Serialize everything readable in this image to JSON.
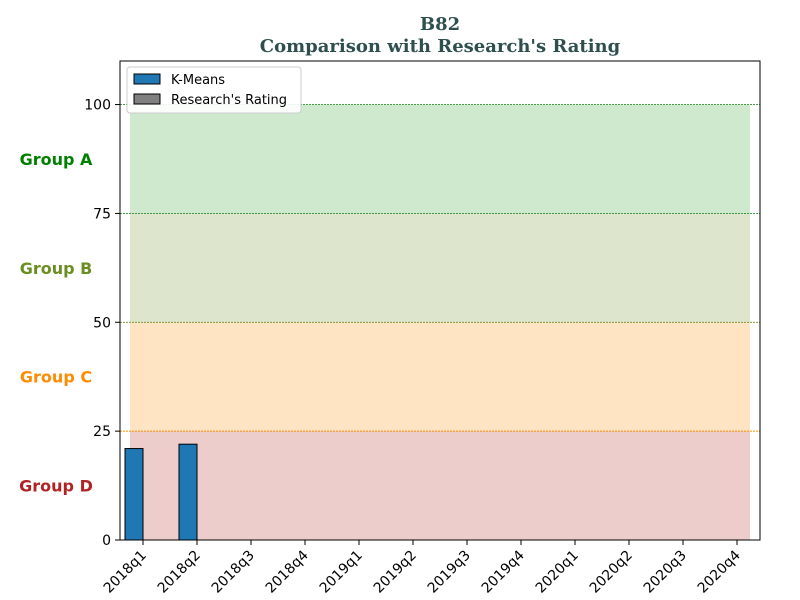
{
  "chart_data": {
    "type": "bar",
    "title": "B82",
    "subtitle": "Comparison with Research's Rating",
    "title_color": "#2f4f4f",
    "categories": [
      "2018q1",
      "2018q2",
      "2018q3",
      "2018q4",
      "2019q1",
      "2019q2",
      "2019q3",
      "2019q4",
      "2020q1",
      "2020q2",
      "2020q3",
      "2020q4"
    ],
    "series": [
      {
        "name": "K-Means",
        "color": "#1f77b4",
        "values": [
          21,
          22,
          null,
          null,
          null,
          null,
          null,
          null,
          null,
          null,
          null,
          null
        ]
      },
      {
        "name": "Research's Rating",
        "color": "#808080",
        "values": [
          null,
          null,
          null,
          null,
          null,
          null,
          null,
          null,
          null,
          null,
          null,
          null
        ]
      }
    ],
    "ylim": [
      0,
      110
    ],
    "yticks": [
      0,
      25,
      50,
      75,
      100
    ],
    "xlabel": "",
    "ylabel": "",
    "legend": "top-left",
    "bands": [
      {
        "from": 75,
        "to": 100,
        "color": "#2ca02c",
        "line_color": "#2e8b2e"
      },
      {
        "from": 50,
        "to": 75,
        "color": "#6b8e23",
        "line_color": "#6b8e23"
      },
      {
        "from": 25,
        "to": 50,
        "color": "#ff8c00",
        "line_color": "#ff8c00"
      },
      {
        "from": 0,
        "to": 25,
        "color": "#b22222",
        "line_color": "#b22222"
      }
    ],
    "groups": [
      {
        "label": "Group A",
        "color": "#008000",
        "center": 87.5
      },
      {
        "label": "Group B",
        "color": "#6b8e23",
        "center": 62.5
      },
      {
        "label": "Group C",
        "color": "#ff8c00",
        "center": 37.5
      },
      {
        "label": "Group D",
        "color": "#b22222",
        "center": 12.5
      }
    ]
  }
}
